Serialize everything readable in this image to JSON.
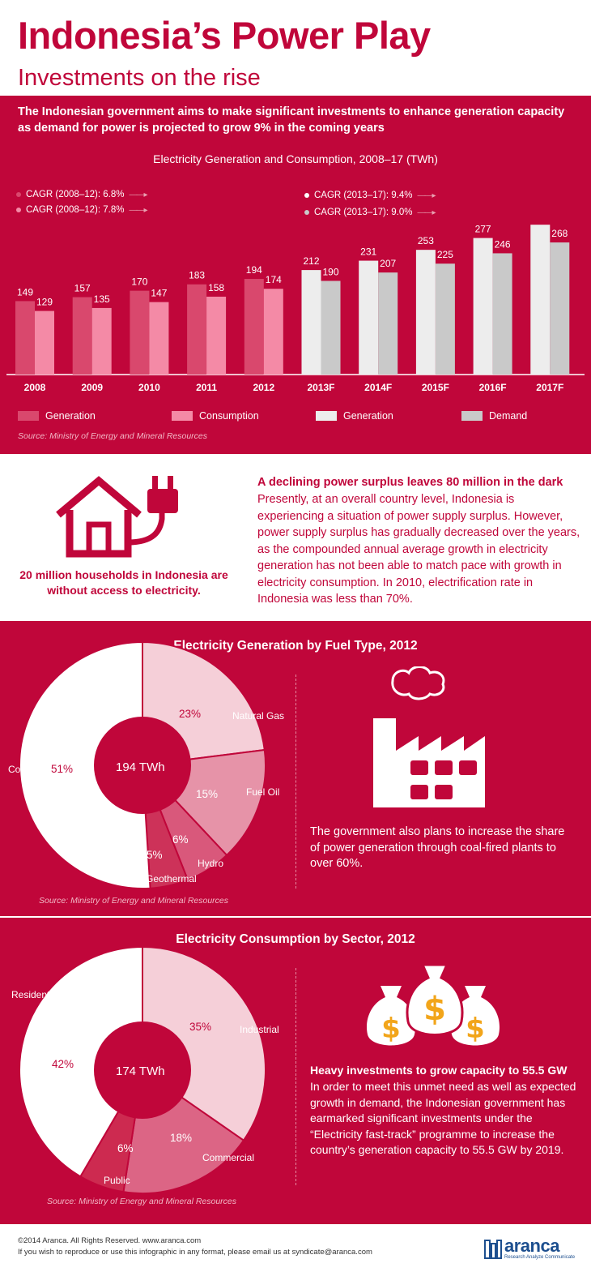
{
  "header": {
    "title": "Indonesia’s Power Play",
    "subtitle": "Investments on the rise",
    "intro": "The Indonesian government aims to make significant investments to enhance generation capacity as demand for power is projected to grow 9% in the coming years"
  },
  "colors": {
    "brand_red": "#c0063a",
    "generation_hist": "#d9486d",
    "consumption_hist": "#f48aa6",
    "generation_fcst": "#ededed",
    "demand_fcst": "#c9c9c9",
    "dollar_gold": "#f2a51a"
  },
  "chart_data": [
    {
      "type": "bar",
      "title": "Electricity Generation and Consumption, 2008–17 (TWh)",
      "categories": [
        "2008",
        "2009",
        "2010",
        "2011",
        "2012",
        "2013F",
        "2014F",
        "2015F",
        "2016F",
        "2017F"
      ],
      "series": [
        {
          "name": "Generation",
          "values": [
            149,
            157,
            170,
            183,
            194,
            null,
            null,
            null,
            null,
            null
          ]
        },
        {
          "name": "Consumption",
          "values": [
            129,
            135,
            147,
            158,
            174,
            null,
            null,
            null,
            null,
            null
          ]
        },
        {
          "name": "Generation",
          "values": [
            null,
            null,
            null,
            null,
            null,
            212,
            231,
            253,
            277,
            304
          ]
        },
        {
          "name": "Demand",
          "values": [
            null,
            null,
            null,
            null,
            null,
            190,
            207,
            225,
            246,
            268
          ]
        }
      ],
      "annotations": [
        "CAGR (2008–12): 6.8%",
        "CAGR (2008–12): 7.8%",
        "CAGR (2013–17): 9.4%",
        "CAGR (2013–17): 9.0%"
      ],
      "legend": [
        "Generation",
        "Consumption",
        "Generation",
        "Demand"
      ],
      "legend_position": "bottom",
      "source": "Source: Ministry of  Energy and Mineral Resources",
      "ylim": [
        0,
        320
      ],
      "grid": false
    },
    {
      "type": "pie",
      "title": "Electricity Generation by Fuel Type, 2012",
      "center_label": "194 TWh",
      "slices": [
        {
          "label": "Natural Gas",
          "value": 23,
          "display": "23%"
        },
        {
          "label": "Fuel Oil",
          "value": 15,
          "display": "15%"
        },
        {
          "label": "Hydro",
          "value": 6,
          "display": "6%"
        },
        {
          "label": "Geothermal",
          "value": 5,
          "display": "5%"
        },
        {
          "label": "Coal",
          "value": 51,
          "display": "51%"
        }
      ],
      "source": "Source: Ministry of  Energy and Mineral Resources"
    },
    {
      "type": "pie",
      "title": "Electricity Consumption by Sector, 2012",
      "center_label": "174 TWh",
      "slices": [
        {
          "label": "Industrial",
          "value": 35,
          "display": "35%"
        },
        {
          "label": "Commercial",
          "value": 18,
          "display": "18%"
        },
        {
          "label": "Public",
          "value": 6,
          "display": "6%"
        },
        {
          "label": "Residential",
          "value": 42,
          "display": "42%"
        }
      ],
      "source": "Source: Ministry of  Energy and Mineral Resources"
    }
  ],
  "surplus": {
    "heading": "A declining power surplus leaves 80 million in the dark",
    "body": "Presently, at an overall country level, Indonesia is experiencing a situation of power supply surplus. However, power supply surplus has gradually decreased over the years, as the compounded annual average growth in electricity generation has not been able  to match pace with growth in electricity consumption.  In 2010, electrification rate in Indonesia was less than 70%.",
    "households": "20 million households in Indonesia are without access to electricity."
  },
  "coal_note": "The government also plans to increase the share of power generation through coal-fired plants to over 60%.",
  "investment": {
    "heading": "Heavy investments to grow capacity to 55.5 GW",
    "body": "In order to meet this unmet need as well as expected growth in demand, the Indonesian government has earmarked significant investments under the “Electricity fast-track” programme to increase the country’s generation capacity to 55.5 GW by 2019."
  },
  "footer": {
    "copyright": "©2014 Aranca. All Rights Reserved. www.aranca.com",
    "reproduce": "If you wish to reproduce or use this infographic in any format, please email us at syndicate@aranca.com",
    "logo": "aranca",
    "tagline": "Research  Analyze  Communicate"
  },
  "icons": [
    "house-plug-icon",
    "factory-icon",
    "money-bags-icon",
    "aranca-logo-icon"
  ]
}
